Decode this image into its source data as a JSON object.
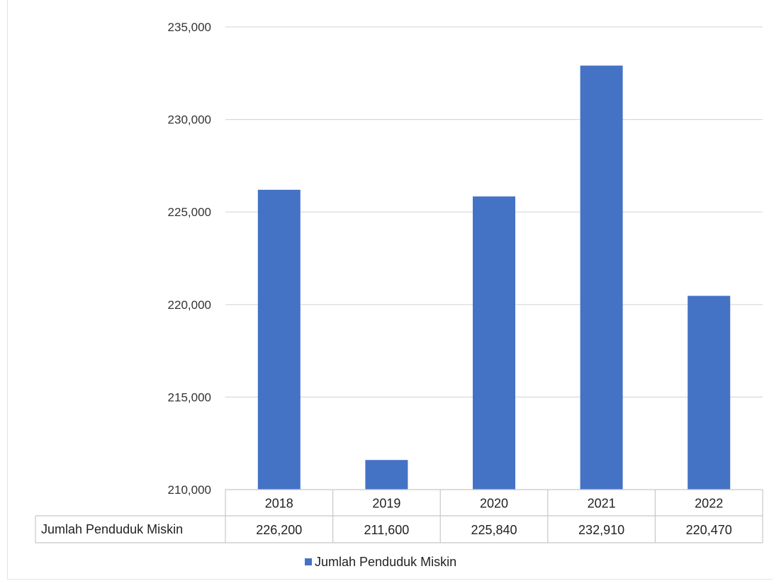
{
  "chart_data": {
    "type": "bar",
    "categories": [
      "2018",
      "2019",
      "2020",
      "2021",
      "2022"
    ],
    "series": [
      {
        "name": "Jumlah Penduduk Miskin",
        "values": [
          226200,
          211600,
          225840,
          232910,
          220470
        ]
      }
    ],
    "y_ticks": [
      "210,000",
      "215,000",
      "220,000",
      "225,000",
      "230,000",
      "235,000"
    ],
    "ylim": [
      210000,
      235000
    ],
    "data_table": {
      "row_label": "Jumlah Penduduk Miskin",
      "cells": [
        "226,200",
        "211,600",
        "225,840",
        "232,910",
        "220,470"
      ]
    },
    "legend": {
      "label": "Jumlah Penduduk Miskin",
      "position": "bottom"
    },
    "colors": {
      "bar": "#4472c4"
    },
    "grid": true
  }
}
